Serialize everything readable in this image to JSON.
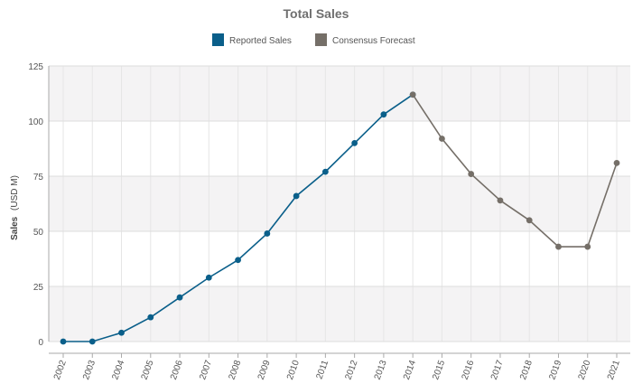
{
  "chart_data": {
    "type": "line",
    "title": "Total Sales",
    "ylabel": "Sales",
    "ylabel_unit": "(USD M)",
    "ylim": [
      0,
      125
    ],
    "yticks": [
      0,
      25,
      50,
      75,
      100,
      125
    ],
    "x": [
      "2002",
      "2003",
      "2004",
      "2005",
      "2006",
      "2007",
      "2008",
      "2009",
      "2010",
      "2011",
      "2012",
      "2013",
      "2014",
      "2015",
      "2016",
      "2017",
      "2018",
      "2019",
      "2020",
      "2021"
    ],
    "series": [
      {
        "name": "Reported Sales",
        "color": "#0a5f8a",
        "x": [
          "2002",
          "2003",
          "2004",
          "2005",
          "2006",
          "2007",
          "2008",
          "2009",
          "2010",
          "2011",
          "2012",
          "2013",
          "2014"
        ],
        "values": [
          0,
          0,
          4,
          11,
          20,
          29,
          37,
          49,
          66,
          77,
          90,
          103,
          112
        ]
      },
      {
        "name": "Consensus Forecast",
        "color": "#756f68",
        "x": [
          "2014",
          "2015",
          "2016",
          "2017",
          "2018",
          "2019",
          "2020",
          "2021"
        ],
        "values": [
          112,
          92,
          76,
          64,
          55,
          43,
          43,
          81
        ]
      }
    ],
    "grid": true,
    "legend_position": "top-center"
  }
}
